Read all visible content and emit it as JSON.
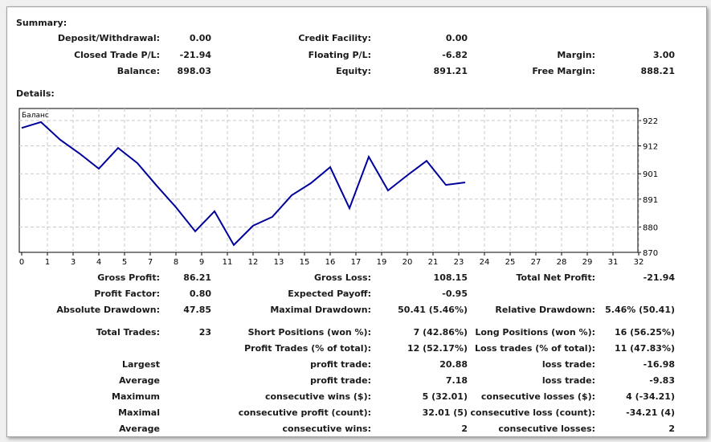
{
  "summary": {
    "title": "Summary:",
    "rows": [
      [
        "Deposit/Withdrawal:",
        "0.00",
        "Credit Facility:",
        "0.00",
        "",
        ""
      ],
      [
        "Closed Trade P/L:",
        "-21.94",
        "Floating P/L:",
        "-6.82",
        "Margin:",
        "3.00"
      ],
      [
        "Balance:",
        "898.03",
        "Equity:",
        "891.21",
        "Free Margin:",
        "888.21"
      ]
    ]
  },
  "details": {
    "title": "Details:",
    "rows": [
      [
        "Gross Profit:",
        "86.21",
        "Gross Loss:",
        "108.15",
        "Total Net Profit:",
        "-21.94"
      ],
      [
        "Profit Factor:",
        "0.80",
        "Expected Payoff:",
        "-0.95",
        "",
        ""
      ],
      [
        "Absolute Drawdown:",
        "47.85",
        "Maximal Drawdown:",
        "50.41 (5.46%)",
        "Relative Drawdown:",
        "5.46% (50.41)"
      ],
      [
        "Total Trades:",
        "23",
        "Short Positions (won %):",
        "7 (42.86%)",
        "Long Positions (won %):",
        "16 (56.25%)"
      ],
      [
        "",
        "",
        "Profit Trades (% of total):",
        "12 (52.17%)",
        "Loss trades (% of total):",
        "11 (47.83%)"
      ],
      [
        "Largest",
        "",
        "profit trade:",
        "20.88",
        "loss trade:",
        "-16.98"
      ],
      [
        "Average",
        "",
        "profit trade:",
        "7.18",
        "loss trade:",
        "-9.83"
      ],
      [
        "Maximum",
        "",
        "consecutive wins ($):",
        "5 (32.01)",
        "consecutive losses ($):",
        "4 (-34.21)"
      ],
      [
        "Maximal",
        "",
        "consecutive profit (count):",
        "32.01 (5)",
        "consecutive loss (count):",
        "-34.21 (4)"
      ],
      [
        "Average",
        "",
        "consecutive wins:",
        "2",
        "consecutive losses:",
        "2"
      ]
    ]
  },
  "chart_data": {
    "type": "line",
    "title": "Баланс",
    "series": [
      {
        "name": "Баланс",
        "color": "#00009c",
        "x": [
          0,
          1,
          2,
          3,
          4,
          5,
          6,
          7,
          8,
          9,
          10,
          11,
          12,
          13,
          14,
          15,
          16,
          17,
          18,
          19,
          20,
          21,
          22,
          23
        ],
        "y": [
          919.1,
          921.4,
          914.4,
          909.0,
          903.0,
          911.2,
          905.2,
          896.3,
          887.8,
          878.3,
          886.2,
          872.9,
          880.5,
          884.0,
          892.5,
          897.3,
          903.6,
          887.4,
          907.7,
          894.4,
          900.4,
          906.1,
          896.6,
          897.6
        ]
      }
    ],
    "x_ticks": [
      "0",
      "1",
      "3",
      "4",
      "5",
      "7",
      "8",
      "9",
      "11",
      "12",
      "13",
      "15",
      "16",
      "17",
      "19",
      "20",
      "21",
      "23",
      "24",
      "25",
      "27",
      "28",
      "29",
      "31",
      "32"
    ],
    "y_ticks": [
      "922",
      "912",
      "901",
      "891",
      "880",
      "870"
    ],
    "xlim": [
      0,
      32.4
    ],
    "ylim": [
      870,
      922
    ],
    "grid": true
  }
}
